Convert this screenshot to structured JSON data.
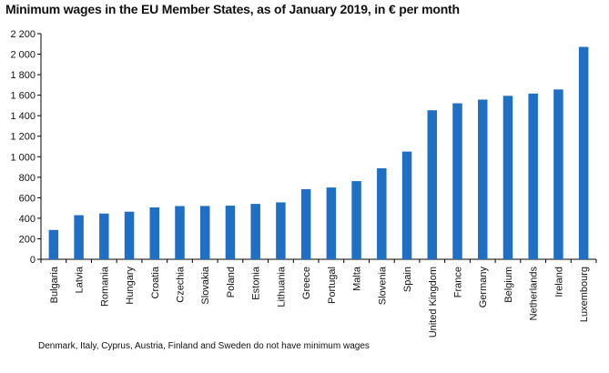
{
  "chart_data": {
    "type": "bar",
    "title": "Minimum wages in the EU Member States, as of January 2019, in € per month",
    "xlabel": "",
    "ylabel": "",
    "ylim": [
      0,
      2200
    ],
    "yticks": [
      0,
      200,
      400,
      600,
      800,
      1000,
      1200,
      1400,
      1600,
      1800,
      2000,
      2200
    ],
    "ytick_labels": [
      "0",
      "200",
      "400",
      "600",
      "800",
      "1 000",
      "1 200",
      "1 400",
      "1 600",
      "1 800",
      "2 000",
      "2 200"
    ],
    "categories": [
      "Bulgaria",
      "Latvia",
      "Romania",
      "Hungary",
      "Croatia",
      "Czechia",
      "Slovakia",
      "Poland",
      "Estonia",
      "Lithuania",
      "Greece",
      "Portugal",
      "Malta",
      "Slovenia",
      "Spain",
      "United Kingdom",
      "France",
      "Germany",
      "Belgium",
      "Netherlands",
      "Ireland",
      "Luxembourg"
    ],
    "values": [
      286,
      430,
      446,
      464,
      506,
      519,
      520,
      523,
      540,
      555,
      684,
      700,
      762,
      887,
      1050,
      1453,
      1521,
      1557,
      1594,
      1616,
      1656,
      2071
    ],
    "bar_color": "#1f6fc5",
    "grid": false,
    "legend": "none"
  },
  "footnote": "Denmark, Italy, Cyprus, Austria, Finland and Sweden do not have minimum  wages"
}
